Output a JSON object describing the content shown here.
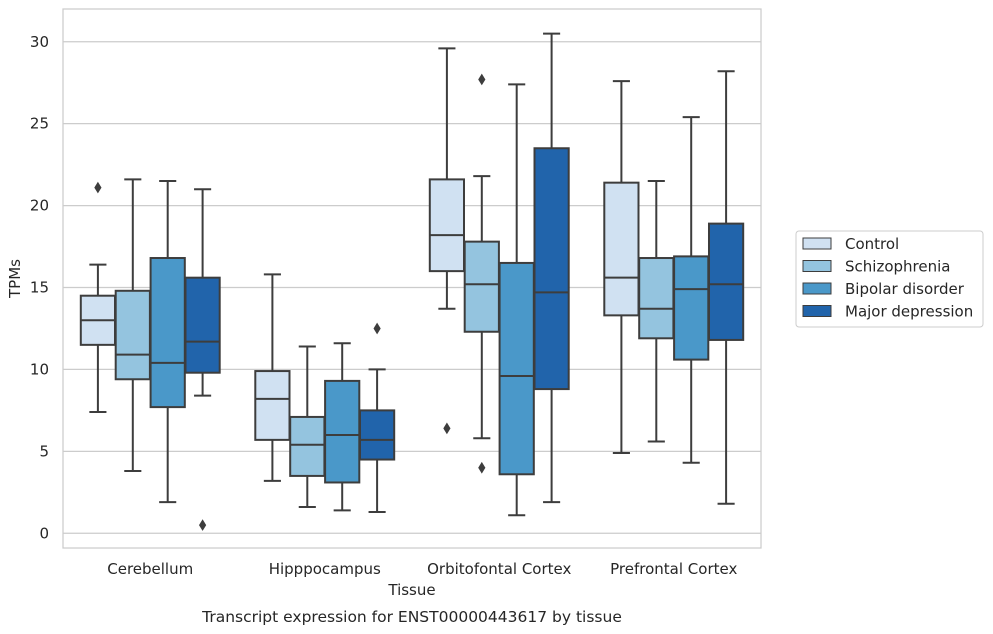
{
  "chart_data": {
    "type": "box",
    "title": "",
    "xlabel": "Tissue",
    "ylabel": "TPMs",
    "caption": "Transcript expression for ENST00000443617 by tissue",
    "ylim": [
      -0.9,
      32
    ],
    "yticks": [
      0,
      5,
      10,
      15,
      20,
      25,
      30
    ],
    "grid": "horizontal",
    "legend_position": "right",
    "categories": [
      "Cerebellum",
      "Hipppocampus",
      "Orbitofontal Cortex",
      "Prefrontal Cortex"
    ],
    "series": [
      {
        "name": "Control",
        "color": "#d0e1f2",
        "boxes": [
          {
            "whisker_low": 7.4,
            "q1": 11.5,
            "median": 13.0,
            "q3": 14.5,
            "whisker_high": 16.4,
            "outliers": [
              21.1
            ]
          },
          {
            "whisker_low": 3.2,
            "q1": 5.7,
            "median": 8.2,
            "q3": 9.9,
            "whisker_high": 15.8,
            "outliers": []
          },
          {
            "whisker_low": 13.7,
            "q1": 16.0,
            "median": 18.2,
            "q3": 21.6,
            "whisker_high": 29.6,
            "outliers": [
              6.4
            ]
          },
          {
            "whisker_low": 4.9,
            "q1": 13.3,
            "median": 15.6,
            "q3": 21.4,
            "whisker_high": 27.6,
            "outliers": []
          }
        ]
      },
      {
        "name": "Schizophrenia",
        "color": "#94c4df",
        "boxes": [
          {
            "whisker_low": 3.8,
            "q1": 9.4,
            "median": 10.9,
            "q3": 14.8,
            "whisker_high": 21.6,
            "outliers": []
          },
          {
            "whisker_low": 1.6,
            "q1": 3.5,
            "median": 5.4,
            "q3": 7.1,
            "whisker_high": 11.4,
            "outliers": []
          },
          {
            "whisker_low": 5.8,
            "q1": 12.3,
            "median": 15.2,
            "q3": 17.8,
            "whisker_high": 21.8,
            "outliers": [
              27.7,
              4.0
            ]
          },
          {
            "whisker_low": 5.6,
            "q1": 11.9,
            "median": 13.7,
            "q3": 16.8,
            "whisker_high": 21.5,
            "outliers": []
          }
        ]
      },
      {
        "name": "Bipolar disorder",
        "color": "#4a98c9",
        "boxes": [
          {
            "whisker_low": 1.9,
            "q1": 7.7,
            "median": 10.4,
            "q3": 16.8,
            "whisker_high": 21.5,
            "outliers": []
          },
          {
            "whisker_low": 1.4,
            "q1": 3.1,
            "median": 6.0,
            "q3": 9.3,
            "whisker_high": 11.6,
            "outliers": []
          },
          {
            "whisker_low": 1.1,
            "q1": 3.6,
            "median": 9.6,
            "q3": 16.5,
            "whisker_high": 27.4,
            "outliers": []
          },
          {
            "whisker_low": 4.3,
            "q1": 10.6,
            "median": 14.9,
            "q3": 16.9,
            "whisker_high": 25.4,
            "outliers": []
          }
        ]
      },
      {
        "name": "Major depression",
        "color": "#2164ab",
        "boxes": [
          {
            "whisker_low": 8.4,
            "q1": 9.8,
            "median": 11.7,
            "q3": 15.6,
            "whisker_high": 21.0,
            "outliers": [
              0.5
            ]
          },
          {
            "whisker_low": 1.3,
            "q1": 4.5,
            "median": 5.7,
            "q3": 7.5,
            "whisker_high": 10.0,
            "outliers": [
              12.5
            ]
          },
          {
            "whisker_low": 1.9,
            "q1": 8.8,
            "median": 14.7,
            "q3": 23.5,
            "whisker_high": 30.5,
            "outliers": []
          },
          {
            "whisker_low": 1.8,
            "q1": 11.8,
            "median": 15.2,
            "q3": 18.9,
            "whisker_high": 28.2,
            "outliers": []
          }
        ]
      }
    ]
  }
}
